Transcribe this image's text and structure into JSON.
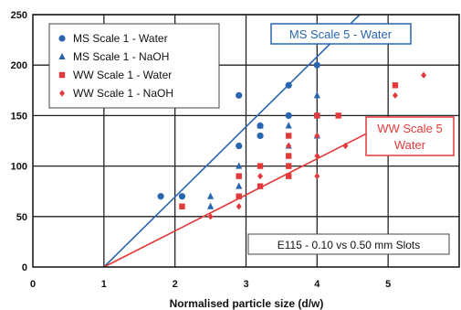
{
  "chart_data": {
    "type": "scatter",
    "xlabel": "Normalised particle size (d/w)",
    "ylabel": "",
    "xlim": [
      0,
      6
    ],
    "ylim": [
      0,
      250
    ],
    "xticks": [
      0,
      1,
      2,
      3,
      4,
      5
    ],
    "yticks": [
      0,
      50,
      100,
      150,
      200,
      250
    ],
    "grid": true,
    "legend_position": "top-left",
    "series": [
      {
        "name": "MS Scale 1 - Water",
        "marker": "circle",
        "color": "#2a66b0",
        "points": [
          [
            1.8,
            70
          ],
          [
            2.1,
            70
          ],
          [
            2.9,
            170
          ],
          [
            2.9,
            120
          ],
          [
            3.2,
            140
          ],
          [
            3.2,
            130
          ],
          [
            3.6,
            180
          ],
          [
            3.6,
            150
          ],
          [
            4.0,
            200
          ],
          [
            4.0,
            150
          ]
        ]
      },
      {
        "name": "MS Scale 1 - NaOH",
        "marker": "triangle",
        "color": "#2a66b0",
        "points": [
          [
            2.5,
            70
          ],
          [
            2.5,
            60
          ],
          [
            2.9,
            100
          ],
          [
            2.9,
            80
          ],
          [
            3.2,
            140
          ],
          [
            3.6,
            140
          ],
          [
            3.6,
            120
          ],
          [
            4.0,
            170
          ],
          [
            4.0,
            130
          ]
        ]
      },
      {
        "name": "WW Scale 1 - Water",
        "marker": "square",
        "color": "#e23a3a",
        "points": [
          [
            2.1,
            60
          ],
          [
            2.9,
            90
          ],
          [
            2.9,
            70
          ],
          [
            3.2,
            100
          ],
          [
            3.2,
            80
          ],
          [
            3.6,
            130
          ],
          [
            3.6,
            110
          ],
          [
            3.6,
            100
          ],
          [
            3.6,
            90
          ],
          [
            4.0,
            150
          ],
          [
            4.3,
            150
          ],
          [
            5.1,
            180
          ]
        ]
      },
      {
        "name": "WW Scale 1 - NaOH",
        "marker": "diamond",
        "color": "#e23a3a",
        "points": [
          [
            2.5,
            50
          ],
          [
            2.9,
            60
          ],
          [
            3.2,
            90
          ],
          [
            3.6,
            120
          ],
          [
            3.6,
            100
          ],
          [
            4.0,
            130
          ],
          [
            4.0,
            110
          ],
          [
            4.0,
            90
          ],
          [
            4.4,
            120
          ],
          [
            5.1,
            170
          ],
          [
            5.5,
            190
          ]
        ]
      }
    ],
    "lines": [
      {
        "name": "MS Scale 5 - Water",
        "color": "#2a66b0",
        "from": [
          1,
          0
        ],
        "to": [
          4.6,
          250
        ]
      },
      {
        "name": "WW Scale 5 Water",
        "color": "#e23a3a",
        "from": [
          1,
          0
        ],
        "to": [
          5.0,
          143
        ]
      }
    ],
    "annotations": {
      "ms_scale5": "MS Scale 5 - Water",
      "ww_scale5_line1": "WW Scale 5",
      "ww_scale5_line2": "Water",
      "note": "E115 - 0.10 vs 0.50 mm Slots"
    }
  }
}
